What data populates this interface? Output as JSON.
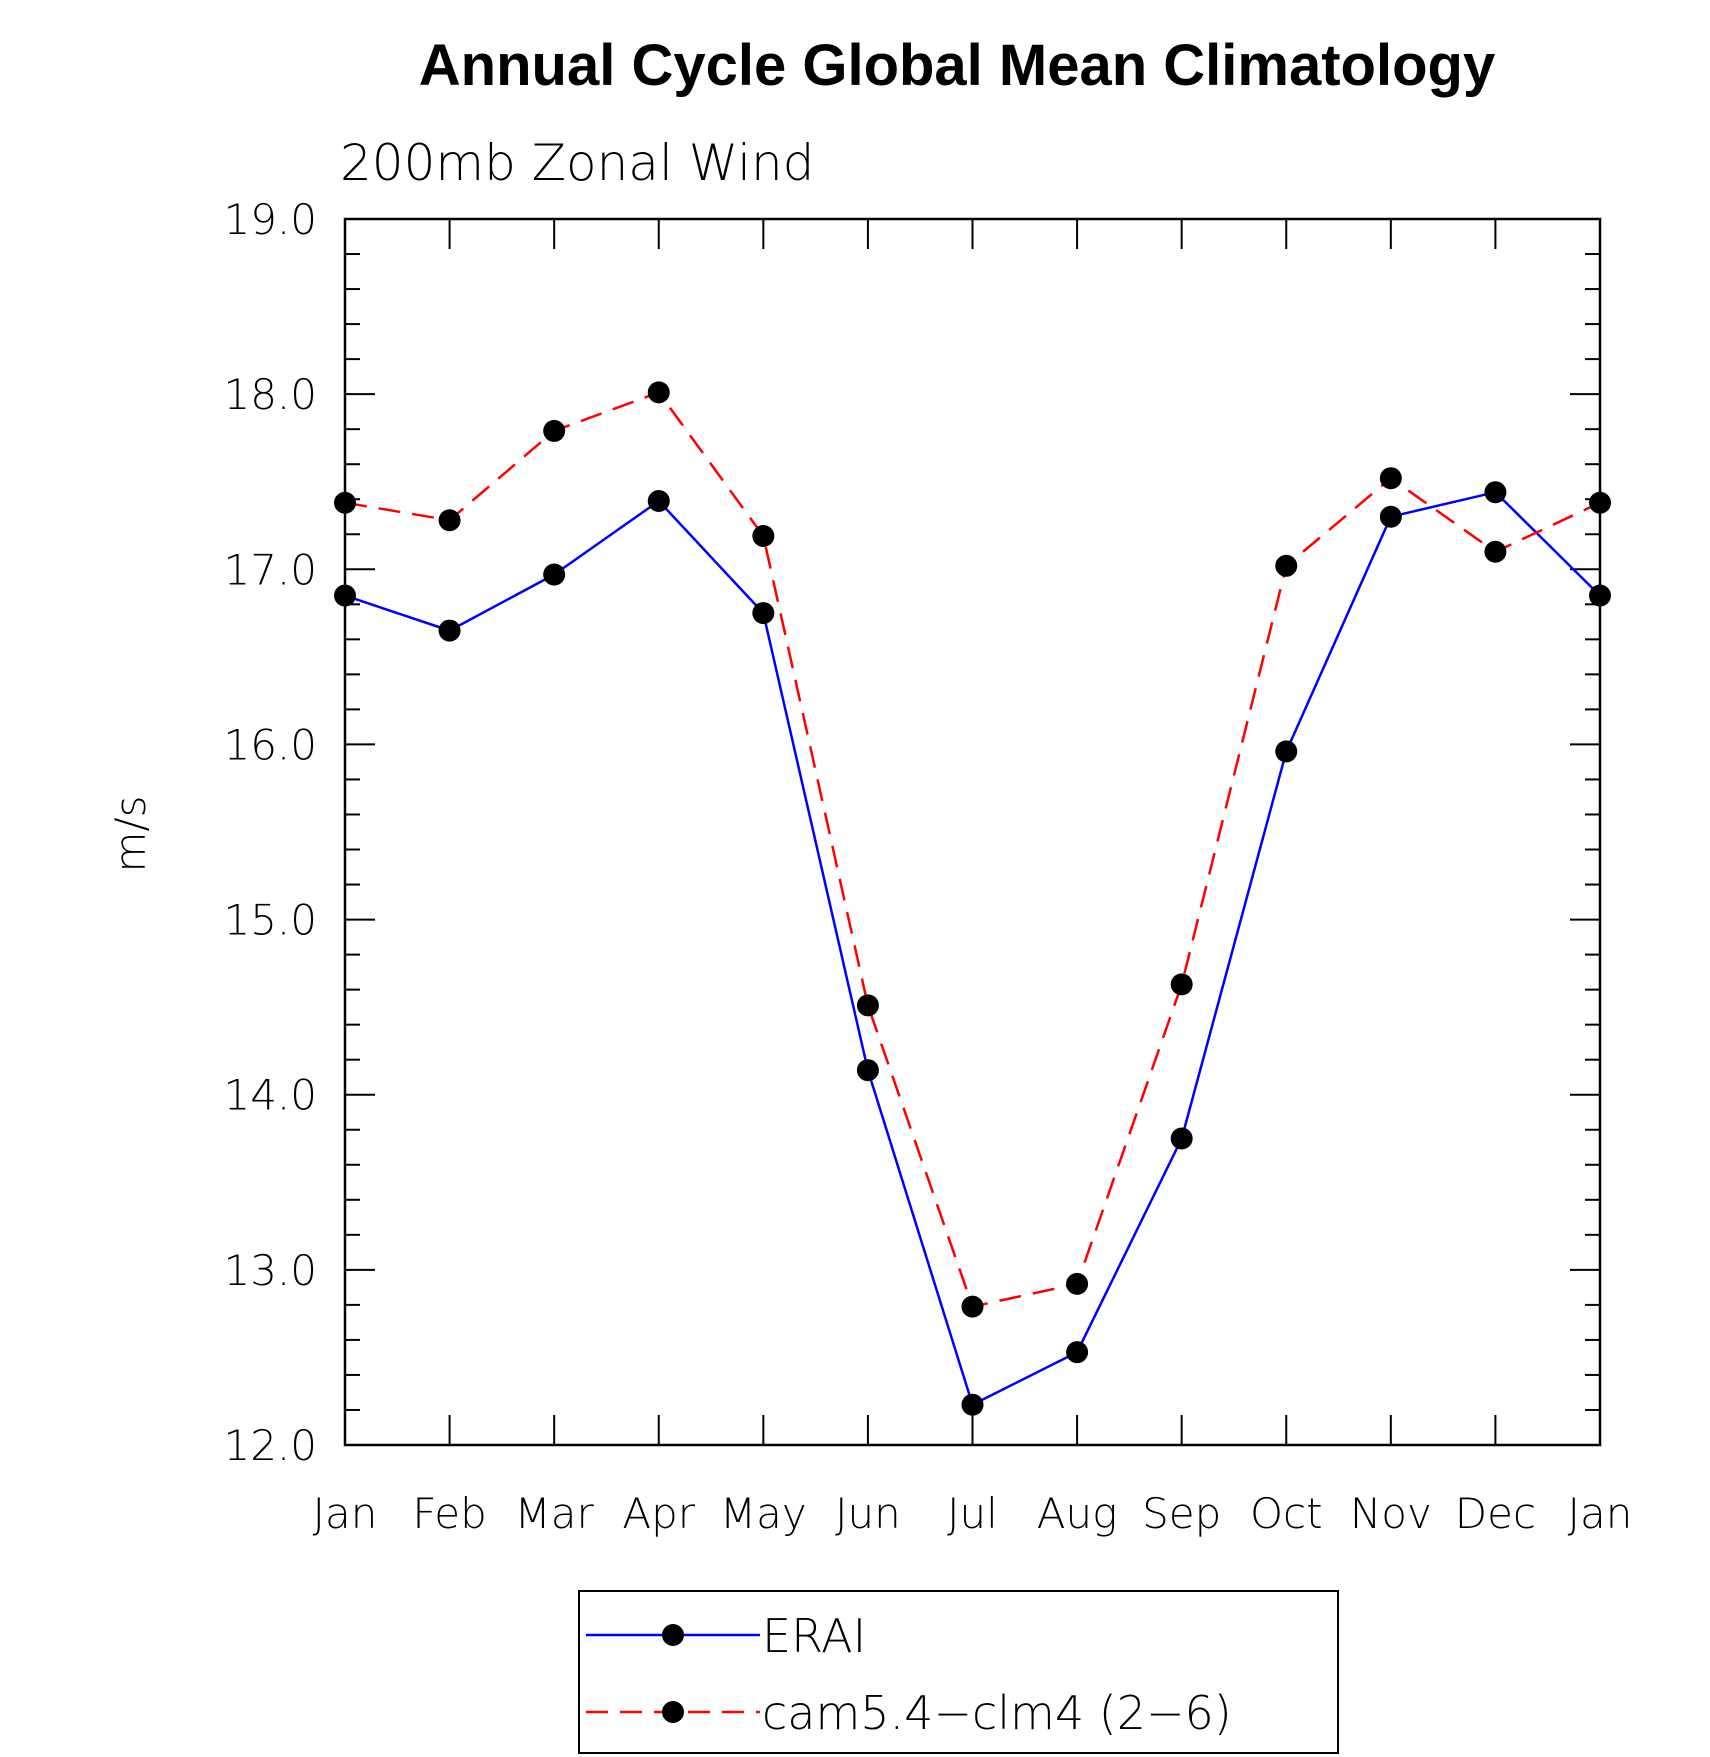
{
  "chart_data": {
    "type": "line",
    "title": "Annual Cycle Global Mean Climatology",
    "subtitle": "200mb Zonal Wind",
    "ylabel": "m/s",
    "xlabel": "",
    "categories": [
      "Jan",
      "Feb",
      "Mar",
      "Apr",
      "May",
      "Jun",
      "Jul",
      "Aug",
      "Sep",
      "Oct",
      "Nov",
      "Dec",
      "Jan"
    ],
    "ylim": [
      12.0,
      19.0
    ],
    "yticks": [
      "12.0",
      "13.0",
      "14.0",
      "15.0",
      "16.0",
      "17.0",
      "18.0",
      "19.0"
    ],
    "grid": false,
    "legend_position": "bottom",
    "series": [
      {
        "name": "ERAI",
        "color": "#0000ff",
        "dash": "solid",
        "values": [
          16.85,
          16.65,
          16.97,
          17.39,
          16.75,
          14.14,
          12.23,
          12.53,
          13.75,
          15.96,
          17.3,
          17.44,
          16.85
        ]
      },
      {
        "name": "cam5.4−clm4 (2−6)",
        "color": "#ff0000",
        "dash": "dashed",
        "values": [
          17.38,
          17.28,
          17.79,
          18.01,
          17.19,
          14.51,
          12.79,
          12.92,
          14.63,
          17.02,
          17.52,
          17.1,
          17.38
        ]
      }
    ]
  }
}
